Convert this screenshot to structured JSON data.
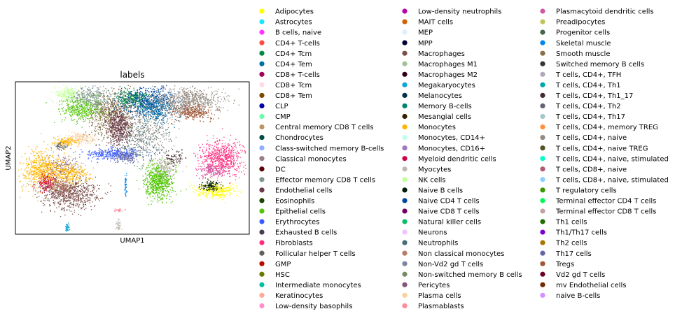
{
  "chart_data": {
    "type": "scatter",
    "title": "labels",
    "xlabel": "UMAP1",
    "ylabel": "UMAP2",
    "legend_position": "right",
    "series": [
      {
        "name": "Adipocytes",
        "color": "#ffff00"
      },
      {
        "name": "Astrocytes",
        "color": "#1ce6ff"
      },
      {
        "name": "B cells, naive",
        "color": "#ff34ff"
      },
      {
        "name": "CD4+ T-cells",
        "color": "#ff4a46"
      },
      {
        "name": "CD4+ Tcm",
        "color": "#008941"
      },
      {
        "name": "CD4+ Tem",
        "color": "#006fa6"
      },
      {
        "name": "CD8+ T-cells",
        "color": "#a30059"
      },
      {
        "name": "CD8+ Tcm",
        "color": "#ffdbe5"
      },
      {
        "name": "CD8+ Tem",
        "color": "#7a4900"
      },
      {
        "name": "CLP",
        "color": "#0000a6"
      },
      {
        "name": "CMP",
        "color": "#63ffac"
      },
      {
        "name": "Central memory CD8 T cells",
        "color": "#b79762"
      },
      {
        "name": "Chondrocytes",
        "color": "#004d43"
      },
      {
        "name": "Class-switched memory B-cells",
        "color": "#8fb0ff"
      },
      {
        "name": "Classical monocytes",
        "color": "#997d87"
      },
      {
        "name": "DC",
        "color": "#5a0007"
      },
      {
        "name": "Effector memory CD8 T cells",
        "color": "#809693"
      },
      {
        "name": "Endothelial cells",
        "color": "#6a3a4c"
      },
      {
        "name": "Eosinophils",
        "color": "#1b4400"
      },
      {
        "name": "Epithelial cells",
        "color": "#4fc601"
      },
      {
        "name": "Erythrocytes",
        "color": "#3b5dff"
      },
      {
        "name": "Exhausted B cells",
        "color": "#4a3b53"
      },
      {
        "name": "Fibroblasts",
        "color": "#ff2f80"
      },
      {
        "name": "Follicular helper T cells",
        "color": "#61615a"
      },
      {
        "name": "GMP",
        "color": "#ba0900"
      },
      {
        "name": "HSC",
        "color": "#6b7900"
      },
      {
        "name": "Intermediate monocytes",
        "color": "#00c2a0"
      },
      {
        "name": "Keratinocytes",
        "color": "#ffaa92"
      },
      {
        "name": "Low-density basophils",
        "color": "#ff90c9"
      },
      {
        "name": "Low-density neutrophils",
        "color": "#b903aa"
      },
      {
        "name": "MAIT cells",
        "color": "#d16100"
      },
      {
        "name": "MEP",
        "color": "#ddefff"
      },
      {
        "name": "MPP",
        "color": "#000035"
      },
      {
        "name": "Macrophages",
        "color": "#7b4f4b"
      },
      {
        "name": "Macrophages M1",
        "color": "#a1c299"
      },
      {
        "name": "Macrophages M2",
        "color": "#300018"
      },
      {
        "name": "Megakaryocytes",
        "color": "#0aa6d8"
      },
      {
        "name": "Melanocytes",
        "color": "#013349"
      },
      {
        "name": "Memory B-cells",
        "color": "#00846f"
      },
      {
        "name": "Mesangial cells",
        "color": "#372101"
      },
      {
        "name": "Monocytes",
        "color": "#ffb500"
      },
      {
        "name": "Monocytes, CD14+",
        "color": "#c2ffed"
      },
      {
        "name": "Monocytes, CD16+",
        "color": "#a079bf"
      },
      {
        "name": "Myeloid dendritic cells",
        "color": "#cc0744"
      },
      {
        "name": "Myocytes",
        "color": "#c0b9b2"
      },
      {
        "name": "NK cells",
        "color": "#c2ff99"
      },
      {
        "name": "Naive B cells",
        "color": "#001e09"
      },
      {
        "name": "Naive CD4 T cells",
        "color": "#00489c"
      },
      {
        "name": "Naive CD8 T cells",
        "color": "#6f0062"
      },
      {
        "name": "Natural killer cells",
        "color": "#0cbd66"
      },
      {
        "name": "Neurons",
        "color": "#eec3ff"
      },
      {
        "name": "Neutrophils",
        "color": "#456d75"
      },
      {
        "name": "Non classical monocytes",
        "color": "#b77b68"
      },
      {
        "name": "Non-Vd2 gd T cells",
        "color": "#7a87a1"
      },
      {
        "name": "Non-switched memory B cells",
        "color": "#788d66"
      },
      {
        "name": "Pericytes",
        "color": "#885578"
      },
      {
        "name": "Plasma cells",
        "color": "#fad09f"
      },
      {
        "name": "Plasmablasts",
        "color": "#ff8a9a"
      },
      {
        "name": "Plasmacytoid dendritic cells",
        "color": "#d157a0"
      },
      {
        "name": "Preadipocytes",
        "color": "#bec459"
      },
      {
        "name": "Progenitor cells",
        "color": "#456648"
      },
      {
        "name": "Skeletal muscle",
        "color": "#0086ed"
      },
      {
        "name": "Smooth muscle",
        "color": "#886f4c"
      },
      {
        "name": "Switched memory B cells",
        "color": "#34362d"
      },
      {
        "name": "T cells, CD4+, TFH",
        "color": "#b4a8bd"
      },
      {
        "name": "T cells, CD4+, Th1",
        "color": "#00a6aa"
      },
      {
        "name": "T cells, CD4+, Th1_17",
        "color": "#452c2c"
      },
      {
        "name": "T cells, CD4+, Th2",
        "color": "#636375"
      },
      {
        "name": "T cells, CD4+, Th17",
        "color": "#a3c8c9"
      },
      {
        "name": "T cells, CD4+, memory TREG",
        "color": "#ff913f"
      },
      {
        "name": "T cells, CD4+, naive",
        "color": "#938a81"
      },
      {
        "name": "T cells, CD4+, naive TREG",
        "color": "#575329"
      },
      {
        "name": "T cells, CD4+, naive, stimulated",
        "color": "#00fecf"
      },
      {
        "name": "T cells, CD8+, naive",
        "color": "#b05b6f"
      },
      {
        "name": "T cells, CD8+, naive, stimulated",
        "color": "#8cd0ff"
      },
      {
        "name": "T regulatory cells",
        "color": "#3b9700"
      },
      {
        "name": "Terminal effector CD4 T cells",
        "color": "#04f757"
      },
      {
        "name": "Terminal effector CD8 T cells",
        "color": "#c8a1a1"
      },
      {
        "name": "Th1 cells",
        "color": "#1e6e00"
      },
      {
        "name": "Th1/Th17 cells",
        "color": "#7900d7"
      },
      {
        "name": "Th2 cells",
        "color": "#a77500"
      },
      {
        "name": "Th17 cells",
        "color": "#6367a9"
      },
      {
        "name": "Tregs",
        "color": "#a05837"
      },
      {
        "name": "Vd2 gd T cells",
        "color": "#6b002c"
      },
      {
        "name": "mv Endothelial cells",
        "color": "#772600"
      },
      {
        "name": "naive B-cells",
        "color": "#d790ff"
      }
    ],
    "clusters": [
      {
        "series": "Monocytes",
        "x": 0.12,
        "y": 0.58,
        "sx": 0.05,
        "sy": 0.06,
        "n": 700
      },
      {
        "series": "Classical monocytes",
        "x": 0.2,
        "y": 0.55,
        "sx": 0.035,
        "sy": 0.035,
        "n": 160
      },
      {
        "series": "Macrophages",
        "x": 0.23,
        "y": 0.73,
        "sx": 0.06,
        "sy": 0.05,
        "n": 750
      },
      {
        "series": "Monocytes",
        "x": 0.24,
        "y": 0.6,
        "sx": 0.035,
        "sy": 0.03,
        "n": 240
      },
      {
        "series": "Myeloid dendritic cells",
        "x": 0.13,
        "y": 0.66,
        "sx": 0.018,
        "sy": 0.03,
        "n": 130
      },
      {
        "series": "Non classical monocytes",
        "x": 0.19,
        "y": 0.68,
        "sx": 0.02,
        "sy": 0.02,
        "n": 100
      },
      {
        "series": "Plasma cells",
        "x": 0.27,
        "y": 0.37,
        "sx": 0.03,
        "sy": 0.02,
        "n": 180
      },
      {
        "series": "Monocytes",
        "x": 0.21,
        "y": 0.39,
        "sx": 0.025,
        "sy": 0.015,
        "n": 140
      },
      {
        "series": "T cells, CD4+, Th2",
        "x": 0.19,
        "y": 0.42,
        "sx": 0.015,
        "sy": 0.012,
        "n": 50
      },
      {
        "series": "Smooth muscle",
        "x": 0.41,
        "y": 0.22,
        "sx": 0.05,
        "sy": 0.08,
        "n": 800
      },
      {
        "series": "Endothelial cells",
        "x": 0.44,
        "y": 0.3,
        "sx": 0.025,
        "sy": 0.06,
        "n": 450
      },
      {
        "series": "Naive CD4 T cells",
        "x": 0.56,
        "y": 0.12,
        "sx": 0.06,
        "sy": 0.045,
        "n": 600
      },
      {
        "series": "CD4+ Tem",
        "x": 0.6,
        "y": 0.18,
        "sx": 0.04,
        "sy": 0.04,
        "n": 350
      },
      {
        "series": "T cells, CD4+, naive",
        "x": 0.74,
        "y": 0.12,
        "sx": 0.07,
        "sy": 0.04,
        "n": 700
      },
      {
        "series": "Tregs",
        "x": 0.76,
        "y": 0.2,
        "sx": 0.04,
        "sy": 0.025,
        "n": 300
      },
      {
        "series": "Epithelial cells",
        "x": 0.28,
        "y": 0.17,
        "sx": 0.045,
        "sy": 0.04,
        "n": 400
      },
      {
        "series": "NK cells",
        "x": 0.22,
        "y": 0.08,
        "sx": 0.03,
        "sy": 0.025,
        "n": 220
      },
      {
        "series": "Effector memory CD8 T cells",
        "x": 0.32,
        "y": 0.1,
        "sx": 0.04,
        "sy": 0.04,
        "n": 300
      },
      {
        "series": "CD4+ Tcm",
        "x": 0.49,
        "y": 0.1,
        "sx": 0.035,
        "sy": 0.03,
        "n": 200
      },
      {
        "series": "Erythrocytes",
        "x": 0.41,
        "y": 0.47,
        "sx": 0.06,
        "sy": 0.018,
        "n": 320
      },
      {
        "series": "Th17 cells",
        "x": 0.47,
        "y": 0.49,
        "sx": 0.025,
        "sy": 0.02,
        "n": 150
      },
      {
        "series": "Neutrophils",
        "x": 0.54,
        "y": 0.38,
        "sx": 0.05,
        "sy": 0.08,
        "n": 250
      },
      {
        "series": "T cells, CD4+, naive",
        "x": 0.57,
        "y": 0.3,
        "sx": 0.05,
        "sy": 0.08,
        "n": 250
      },
      {
        "series": "Epithelial cells",
        "x": 0.61,
        "y": 0.65,
        "sx": 0.03,
        "sy": 0.06,
        "n": 700
      },
      {
        "series": "Fibroblasts",
        "x": 0.88,
        "y": 0.5,
        "sx": 0.045,
        "sy": 0.06,
        "n": 650
      },
      {
        "series": "Plasmacytoid dendritic cells",
        "x": 0.84,
        "y": 0.58,
        "sx": 0.03,
        "sy": 0.02,
        "n": 150
      },
      {
        "series": "Adipocytes",
        "x": 0.85,
        "y": 0.71,
        "sx": 0.04,
        "sy": 0.025,
        "n": 350
      },
      {
        "series": "Naive B cells",
        "x": 0.83,
        "y": 0.68,
        "sx": 0.02,
        "sy": 0.015,
        "n": 120
      },
      {
        "series": "Myocytes",
        "x": 0.64,
        "y": 0.56,
        "sx": 0.025,
        "sy": 0.03,
        "n": 150
      },
      {
        "series": "T cells, CD4+, Th1_17",
        "x": 0.68,
        "y": 0.5,
        "sx": 0.02,
        "sy": 0.02,
        "n": 80
      },
      {
        "series": "Megakaryocytes",
        "x": 0.22,
        "y": 0.95,
        "sx": 0.004,
        "sy": 0.015,
        "n": 40
      },
      {
        "series": "Myocytes",
        "x": 0.44,
        "y": 0.94,
        "sx": 0.006,
        "sy": 0.02,
        "n": 40
      },
      {
        "series": "Plasmablasts",
        "x": 0.44,
        "y": 0.84,
        "sx": 0.01,
        "sy": 0.006,
        "n": 25
      },
      {
        "series": "Skeletal muscle",
        "x": 0.47,
        "y": 0.68,
        "sx": 0.003,
        "sy": 0.035,
        "n": 45
      }
    ]
  }
}
